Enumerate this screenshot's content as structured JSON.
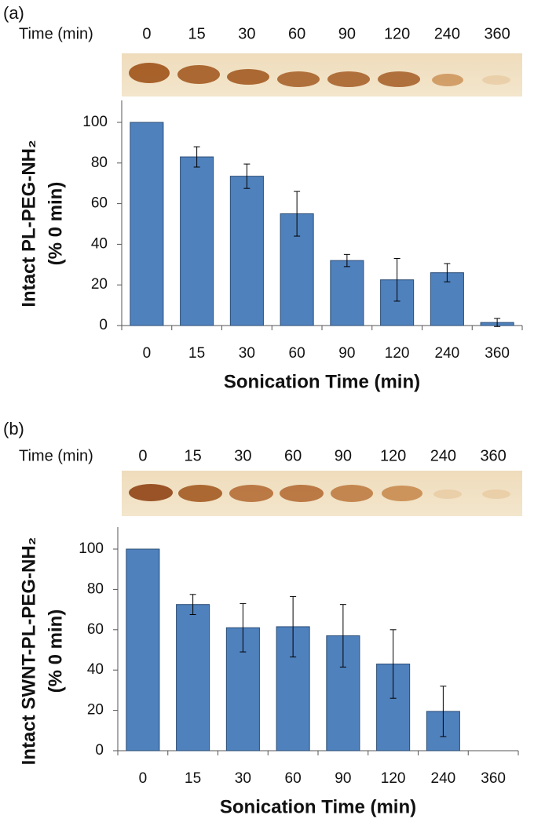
{
  "chart_data": [
    {
      "type": "bar",
      "panel_label": "(a)",
      "gel_label": "Time (min)",
      "y_label": [
        "Intact PL-PEG-NH₂",
        "(% 0 min)"
      ],
      "x_label": "Sonication Time (min)",
      "categories": [
        "0",
        "15",
        "30",
        "60",
        "90",
        "120",
        "240",
        "360"
      ],
      "values": [
        100,
        83,
        73.5,
        55,
        32,
        22.5,
        26,
        1.5
      ],
      "errors": [
        0,
        5,
        6,
        11,
        3,
        10.5,
        4.5,
        2
      ],
      "color": "#4f81bd",
      "ylim": [
        0,
        100
      ],
      "yticks": [
        0,
        20,
        40,
        60,
        80,
        100
      ]
    },
    {
      "type": "bar",
      "panel_label": "(b)",
      "gel_label": "Time (min)",
      "y_label": [
        "Intact SWNT-PL-PEG-NH₂",
        "(% 0 min)"
      ],
      "x_label": "Sonication Time (min)",
      "categories": [
        "0",
        "15",
        "30",
        "60",
        "90",
        "120",
        "240",
        "360"
      ],
      "values": [
        100,
        72.5,
        61,
        61.5,
        57,
        43,
        19.5,
        null
      ],
      "errors": [
        0,
        5,
        12,
        15,
        15.5,
        17,
        12.5,
        null
      ],
      "color": "#4f81bd",
      "ylim": [
        0,
        100
      ],
      "yticks": [
        0,
        20,
        40,
        60,
        80,
        100
      ]
    }
  ]
}
